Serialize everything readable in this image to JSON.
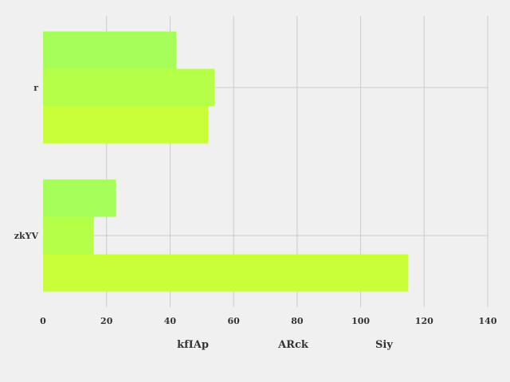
{
  "chart_data": {
    "type": "bar",
    "orientation": "horizontal",
    "categories": [
      "r",
      "zkYV"
    ],
    "series": [
      {
        "name": "kfIAp",
        "values": [
          42,
          23
        ],
        "color": "#a6ff59"
      },
      {
        "name": "ARck",
        "values": [
          54,
          16
        ],
        "color": "#b6ff48"
      },
      {
        "name": "Siy",
        "values": [
          52,
          115
        ],
        "color": "#c8ff38"
      }
    ],
    "xlim": [
      0,
      140
    ],
    "xticks": [
      0,
      20,
      40,
      60,
      80,
      100,
      120,
      140
    ],
    "grid": true,
    "legend": "bottom"
  },
  "colors": {
    "background": "#f0f0f0",
    "grid": "#cbcbcb",
    "text": "#333333"
  }
}
